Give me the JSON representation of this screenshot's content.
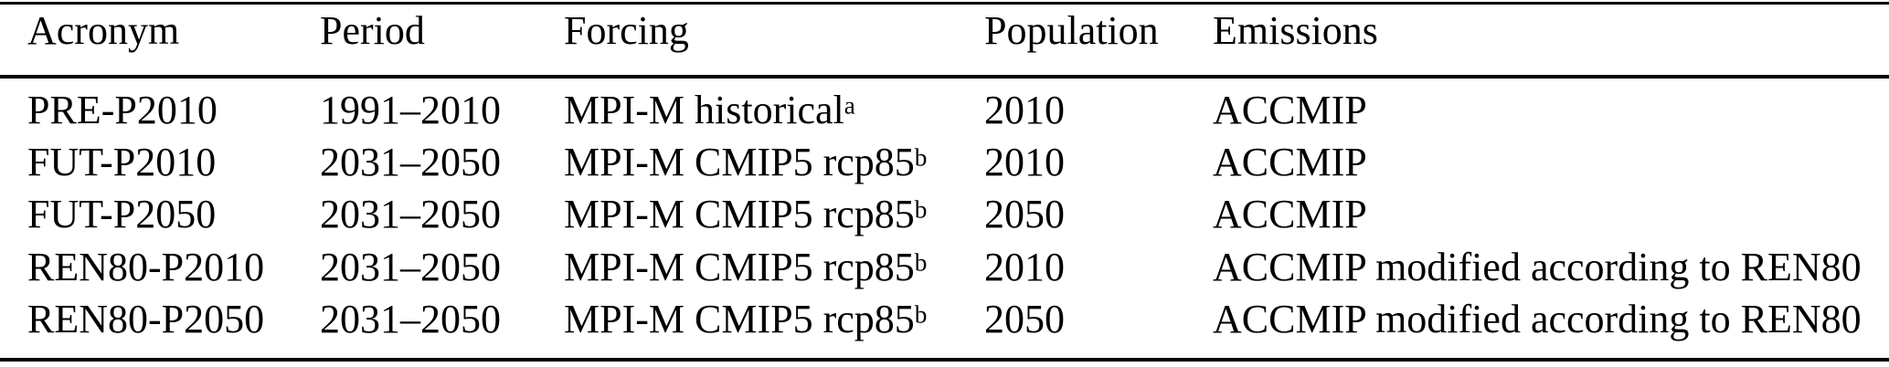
{
  "table": {
    "columns": {
      "acronym": "Acronym",
      "period": "Period",
      "forcing": "Forcing",
      "population": "Population",
      "emissions": "Emissions"
    },
    "rows": [
      {
        "acronym": "PRE-P2010",
        "period": "1991–2010",
        "forcing": "MPI-M historical",
        "forcing_note": "a",
        "population": "2010",
        "emissions": "ACCMIP"
      },
      {
        "acronym": "FUT-P2010",
        "period": "2031–2050",
        "forcing": "MPI-M CMIP5 rcp85",
        "forcing_note": "b",
        "population": "2010",
        "emissions": "ACCMIP"
      },
      {
        "acronym": "FUT-P2050",
        "period": "2031–2050",
        "forcing": "MPI-M CMIP5 rcp85",
        "forcing_note": "b",
        "population": "2050",
        "emissions": "ACCMIP"
      },
      {
        "acronym": "REN80-P2010",
        "period": "2031–2050",
        "forcing": "MPI-M CMIP5 rcp85",
        "forcing_note": "b",
        "population": "2010",
        "emissions": "ACCMIP modified according to REN80"
      },
      {
        "acronym": "REN80-P2050",
        "period": "2031–2050",
        "forcing": "MPI-M CMIP5 rcp85",
        "forcing_note": "b",
        "population": "2050",
        "emissions": "ACCMIP modified according to REN80"
      }
    ]
  },
  "colors": {
    "text": "#000000",
    "background": "#ffffff",
    "rule": "#000000"
  }
}
